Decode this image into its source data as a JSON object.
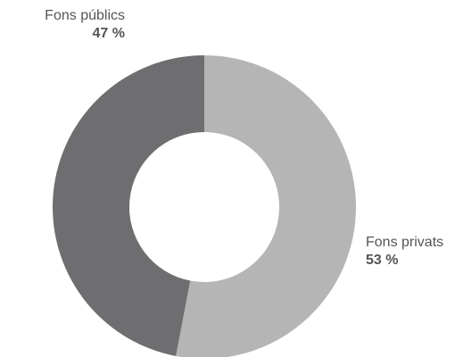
{
  "chart_data": {
    "type": "pie",
    "variant": "donut",
    "slices": [
      {
        "label": "Fons privats",
        "value": 53,
        "display": "53 %",
        "color": "#b5b5b5"
      },
      {
        "label": "Fons públics",
        "value": 47,
        "display": "47 %",
        "color": "#6e6e70"
      }
    ]
  }
}
